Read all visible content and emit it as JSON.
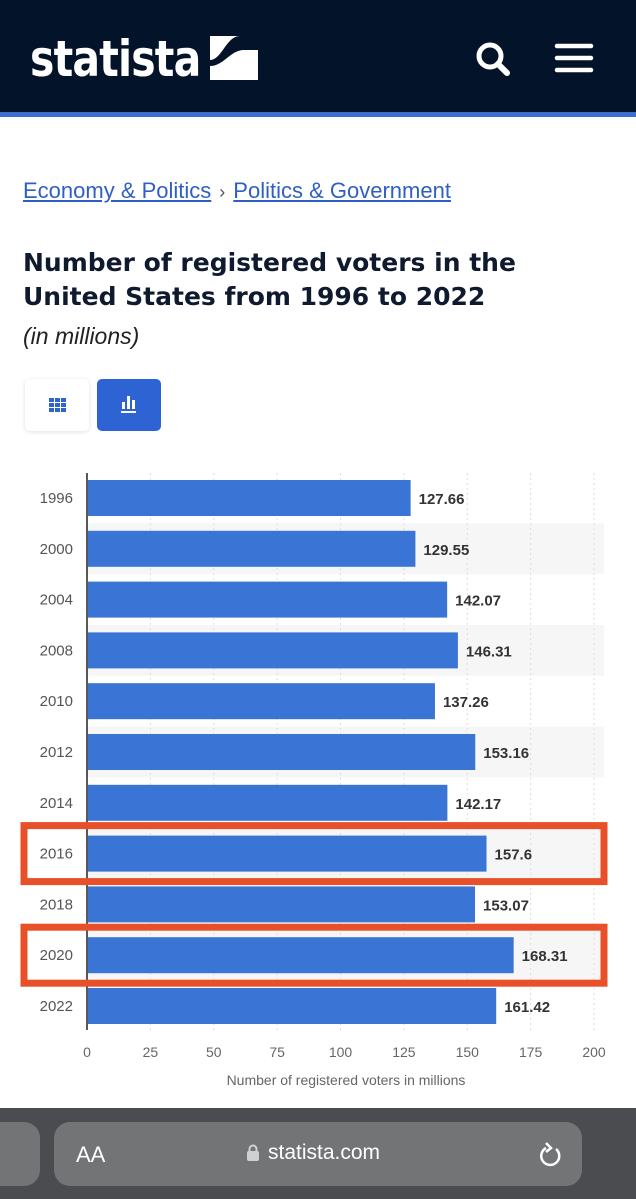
{
  "header": {
    "logo": "statista"
  },
  "breadcrumb": [
    "Economy & Politics",
    "Politics & Government"
  ],
  "breadcrumb_sep": "›",
  "title": "Number of registered voters in the United States from 1996 to 2022",
  "subtitle": "(in millions)",
  "browser": {
    "text_size": "AA",
    "url": "statista.com"
  },
  "chart_data": {
    "type": "bar",
    "orientation": "horizontal",
    "categories": [
      "1996",
      "2000",
      "2004",
      "2008",
      "2010",
      "2012",
      "2014",
      "2016",
      "2018",
      "2020",
      "2022"
    ],
    "values": [
      127.66,
      129.55,
      142.07,
      146.31,
      137.26,
      153.16,
      142.17,
      157.6,
      153.07,
      168.31,
      161.42
    ],
    "value_labels": [
      "127.66",
      "129.55",
      "142.07",
      "146.31",
      "137.26",
      "153.16",
      "142.17",
      "157.6",
      "153.07",
      "168.31",
      "161.42"
    ],
    "xlabel": "Number of registered voters in millions",
    "xlim": [
      0,
      200
    ],
    "xticks": [
      "0",
      "25",
      "50",
      "75",
      "100",
      "125",
      "150",
      "175",
      "200"
    ],
    "highlighted": [
      "2016",
      "2020"
    ],
    "bar_color": "#3a74d4",
    "highlight_color": "#e8502a"
  }
}
